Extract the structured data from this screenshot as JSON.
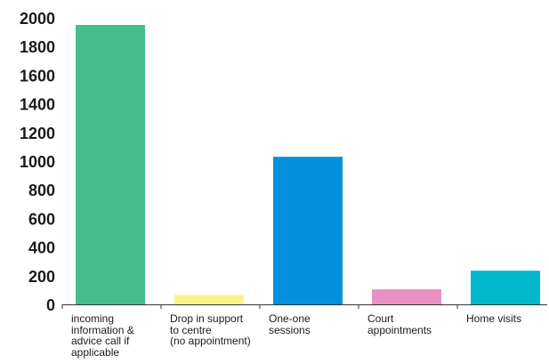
{
  "chart_data": {
    "type": "bar",
    "categories": [
      "incoming\ninformation &\nadvice call if\napplicable",
      "Drop in support\nto centre\n(no appointment)",
      "One-one\nsessions",
      "Court\nappointments",
      "Home visits"
    ],
    "values": [
      1950,
      65,
      1030,
      105,
      235
    ],
    "colors": [
      "#44bd8c",
      "#fbf38a",
      "#0590dc",
      "#e991c5",
      "#00b8cd"
    ],
    "ylim": [
      0,
      2000
    ],
    "yticks": [
      0,
      200,
      400,
      600,
      800,
      1000,
      1200,
      1400,
      1600,
      1800,
      2000
    ],
    "title": "",
    "xlabel": "",
    "ylabel": "",
    "grid": false,
    "legend": "none"
  }
}
